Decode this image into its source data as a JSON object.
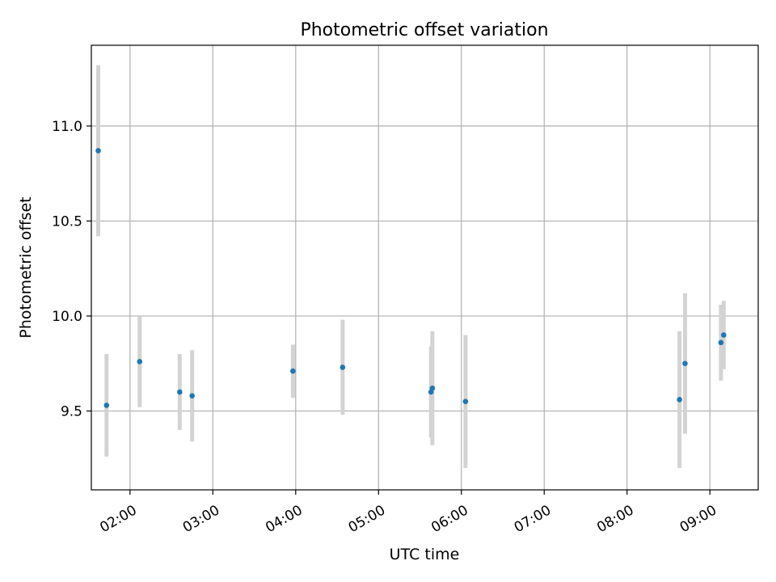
{
  "chart_data": {
    "type": "scatter",
    "title": "Photometric offset variation",
    "xlabel": "UTC time",
    "ylabel": "Photometric offset",
    "x_ticks": [
      "02:00",
      "03:00",
      "04:00",
      "05:00",
      "06:00",
      "07:00",
      "08:00",
      "09:00"
    ],
    "x_tick_hours": [
      2,
      3,
      4,
      5,
      6,
      7,
      8,
      9
    ],
    "y_ticks": [
      9.5,
      10.0,
      10.5,
      11.0
    ],
    "xlim": [
      "01:32",
      "09:35"
    ],
    "ylim": [
      9.085,
      11.425
    ],
    "grid": true,
    "points": [
      {
        "x": "01:37",
        "y": 10.87,
        "err": 0.45
      },
      {
        "x": "01:43",
        "y": 9.53,
        "err": 0.27
      },
      {
        "x": "02:07",
        "y": 9.76,
        "err": 0.24
      },
      {
        "x": "02:36",
        "y": 9.6,
        "err": 0.2
      },
      {
        "x": "02:45",
        "y": 9.58,
        "err": 0.24
      },
      {
        "x": "03:58",
        "y": 9.71,
        "err": 0.14
      },
      {
        "x": "04:34",
        "y": 9.73,
        "err": 0.25
      },
      {
        "x": "05:38",
        "y": 9.6,
        "err": 0.24
      },
      {
        "x": "05:39",
        "y": 9.62,
        "err": 0.3
      },
      {
        "x": "06:03",
        "y": 9.55,
        "err": 0.35
      },
      {
        "x": "08:38",
        "y": 9.56,
        "err": 0.36
      },
      {
        "x": "08:42",
        "y": 9.75,
        "err": 0.37
      },
      {
        "x": "09:08",
        "y": 9.86,
        "err": 0.2
      },
      {
        "x": "09:10",
        "y": 9.9,
        "err": 0.18
      }
    ],
    "colors": {
      "marker": "#1f77b4",
      "errorbar": "#d3d3d3",
      "grid": "#b0b0b0",
      "frame": "#000000"
    }
  }
}
